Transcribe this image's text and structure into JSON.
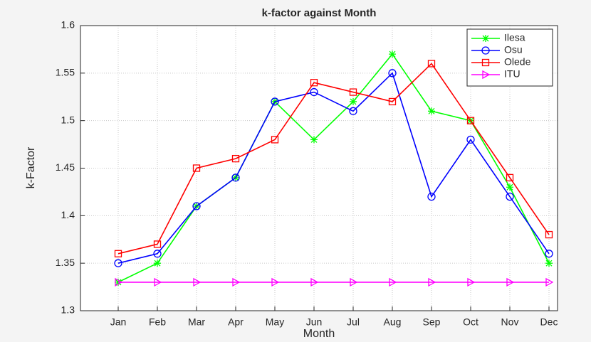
{
  "chart_data": {
    "type": "line",
    "title": "k-factor against Month",
    "x_label": "Month",
    "y_label": "k-Factor",
    "categories": [
      "Jan",
      "Feb",
      "Mar",
      "Apr",
      "May",
      "Jun",
      "Jul",
      "Aug",
      "Sep",
      "Oct",
      "Nov",
      "Dec"
    ],
    "series": [
      {
        "name": "Ilesa",
        "color": "#00ff00",
        "marker": "asterisk",
        "values": [
          1.33,
          1.35,
          1.41,
          1.44,
          1.52,
          1.48,
          1.52,
          1.57,
          1.51,
          1.5,
          1.43,
          1.35
        ]
      },
      {
        "name": "Osu",
        "color": "#0000ff",
        "marker": "circle",
        "values": [
          1.35,
          1.36,
          1.41,
          1.44,
          1.52,
          1.53,
          1.51,
          1.55,
          1.42,
          1.48,
          1.42,
          1.36
        ]
      },
      {
        "name": "Olede",
        "color": "#ff0000",
        "marker": "square",
        "values": [
          1.36,
          1.37,
          1.45,
          1.46,
          1.48,
          1.54,
          1.53,
          1.52,
          1.56,
          1.5,
          1.44,
          1.38
        ]
      },
      {
        "name": "ITU",
        "color": "#ff00ff",
        "marker": "triangle-right",
        "values": [
          1.33,
          1.33,
          1.33,
          1.33,
          1.33,
          1.33,
          1.33,
          1.33,
          1.33,
          1.33,
          1.33,
          1.33
        ]
      }
    ],
    "ylim": [
      1.3,
      1.6
    ],
    "yticks": [
      1.3,
      1.35,
      1.4,
      1.45,
      1.5,
      1.55,
      1.6
    ],
    "grid": true,
    "legend": "northeast"
  }
}
